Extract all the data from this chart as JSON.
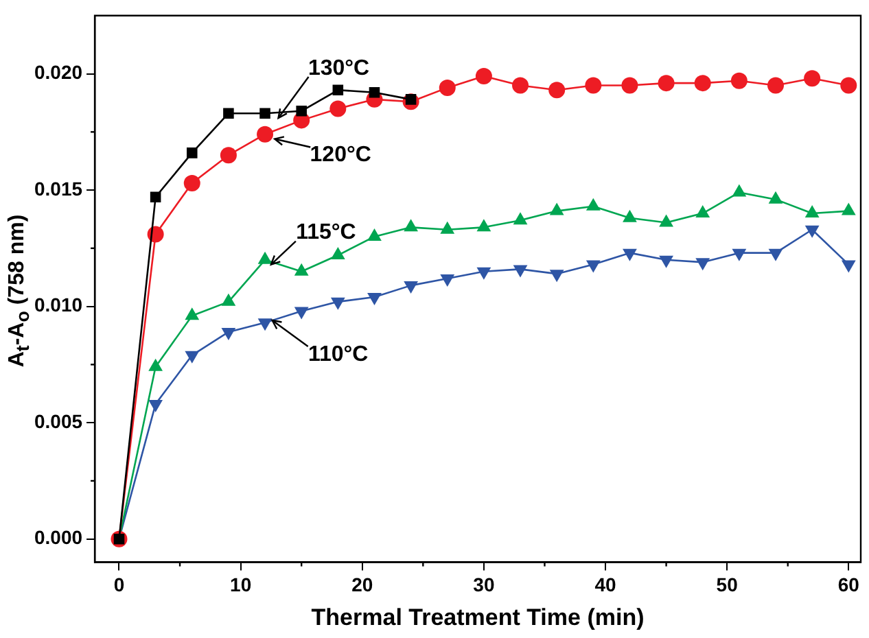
{
  "chart_data": {
    "type": "line",
    "xlabel": "Thermal Treatment Time (min)",
    "ylabel": "A$_{t}$-A$_{o}$ (758 nm)",
    "x": [
      0,
      3,
      6,
      9,
      12,
      15,
      18,
      21,
      24,
      27,
      30,
      33,
      36,
      39,
      42,
      45,
      48,
      51,
      54,
      57,
      60
    ],
    "series": [
      {
        "color": "#000000",
        "marker": "square",
        "x": [
          0,
          3,
          6,
          9,
          12,
          15,
          18,
          21,
          24
        ],
        "values": [
          0,
          0.0147,
          0.0166,
          0.0183,
          0.0183,
          0.0184,
          0.0193,
          0.0192,
          0.0189
        ]
      },
      {
        "color": "#ed1c24",
        "marker": "circle",
        "values": [
          0,
          0.0131,
          0.0153,
          0.0165,
          0.0174,
          0.018,
          0.0185,
          0.0189,
          0.0188,
          0.0194,
          0.0199,
          0.0195,
          0.0193,
          0.0195,
          0.0195,
          0.0196,
          0.0196,
          0.0197,
          0.0195,
          0.0198,
          0.0195
        ]
      },
      {
        "color": "#00a651",
        "marker": "triangle",
        "values": [
          0,
          0.0074,
          0.0096,
          0.0102,
          0.012,
          0.0115,
          0.0122,
          0.013,
          0.0134,
          0.0133,
          0.0134,
          0.0137,
          0.0141,
          0.0143,
          0.0138,
          0.0136,
          0.014,
          0.0149,
          0.0146,
          0.014,
          0.0141
        ]
      },
      {
        "color": "#2e55a5",
        "marker": "triangle-down",
        "values": [
          0,
          0.0058,
          0.0079,
          0.0089,
          0.0093,
          0.0098,
          0.0102,
          0.0104,
          0.0109,
          0.0112,
          0.0115,
          0.0116,
          0.0114,
          0.0118,
          0.0123,
          0.012,
          0.0119,
          0.0123,
          0.0123,
          0.0133,
          0.0118
        ]
      }
    ],
    "annotations": [
      {
        "text": "130°C",
        "x": 13.1,
        "y": 0.0181
      },
      {
        "text": "120°C",
        "x": 12.8,
        "y": 0.0172
      },
      {
        "text": "115°C",
        "x": 12.5,
        "y": 0.0118
      },
      {
        "text": "110°C",
        "x": 12.6,
        "y": 0.0094
      }
    ],
    "xlim": [
      -2,
      61
    ],
    "xticks": [
      0,
      10,
      20,
      30,
      40,
      50,
      60
    ],
    "ylim": [
      -0.001,
      0.0225
    ],
    "yticks": [
      {
        "value": 0,
        "label": "0.000"
      },
      {
        "value": 0.005,
        "label": "0.005"
      },
      {
        "value": 0.01,
        "label": "0.010"
      },
      {
        "value": 0.015,
        "label": "0.015"
      },
      {
        "value": 0.02,
        "label": "0.020"
      }
    ],
    "grid": false,
    "legend": false,
    "line_style": "solid"
  }
}
